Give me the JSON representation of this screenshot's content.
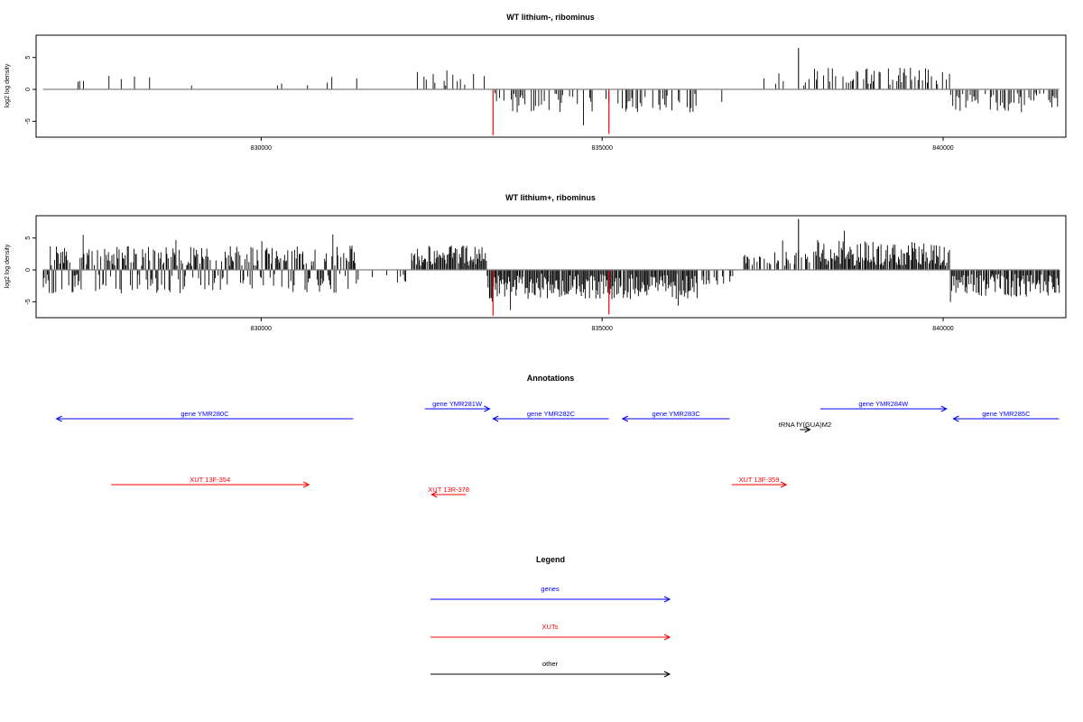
{
  "colors": {
    "gene": "#0000ff",
    "xut": "#ff0000",
    "other": "#000000",
    "highlight": "#ff0000",
    "bar": "#000000",
    "baseline": "#808080"
  },
  "chart_data": [
    {
      "type": "bar",
      "title": "WT lithium-, ribominus",
      "ylabel": "log2 log density",
      "xlim": [
        826700,
        841800
      ],
      "ylim": [
        -7.5,
        8.5
      ],
      "xticks": [
        830000,
        835000,
        840000
      ],
      "yticks": [
        -5,
        0,
        5
      ],
      "highlight_x": [
        833400,
        835100
      ],
      "highlight_values": [
        -7.2,
        -7.0
      ],
      "seed": 11,
      "density": "sparse"
    },
    {
      "type": "bar",
      "title": "WT lithium+, ribominus",
      "ylabel": "log2 log density",
      "xlim": [
        826700,
        841800
      ],
      "ylim": [
        -7.5,
        8.5
      ],
      "xticks": [
        830000,
        835000,
        840000
      ],
      "yticks": [
        -5,
        0,
        5
      ],
      "highlight_x": [
        833400,
        835100
      ],
      "highlight_values": [
        -7.2,
        -7.0
      ],
      "seed": 29,
      "density": "dense"
    }
  ],
  "annotations": {
    "title": "Annotations",
    "xlim": [
      826700,
      841800
    ],
    "features": [
      {
        "label": "gene YMR280C",
        "type": "gene",
        "strand": "-",
        "start": 827000,
        "end": 831350,
        "row": 1
      },
      {
        "label": "gene YMR281W",
        "type": "gene",
        "strand": "+",
        "start": 832400,
        "end": 833350,
        "row": 0
      },
      {
        "label": "gene YMR282C",
        "type": "gene",
        "strand": "-",
        "start": 833400,
        "end": 835100,
        "row": 1
      },
      {
        "label": "gene YMR283C",
        "type": "gene",
        "strand": "-",
        "start": 835300,
        "end": 836870,
        "row": 1
      },
      {
        "label": "gene YMR284W",
        "type": "gene",
        "strand": "+",
        "start": 838200,
        "end": 840050,
        "row": 0
      },
      {
        "label": "gene YMR285C",
        "type": "gene",
        "strand": "-",
        "start": 840150,
        "end": 841700,
        "row": 1
      },
      {
        "label": "tRNA fY(GUA)M2",
        "type": "other",
        "strand": "+",
        "start": 837900,
        "end": 838050,
        "row": 2
      },
      {
        "label": "XUT 13F-354",
        "type": "xut",
        "strand": "+",
        "start": 827800,
        "end": 830700,
        "row": 3
      },
      {
        "label": "XUT 13R-378",
        "type": "xut",
        "strand": "-",
        "start": 832500,
        "end": 833000,
        "row": 4
      },
      {
        "label": "XUT 13F-359",
        "type": "xut",
        "strand": "+",
        "start": 836900,
        "end": 837700,
        "row": 3
      }
    ]
  },
  "legend": {
    "title": "Legend",
    "items": [
      {
        "label": "genes",
        "type": "gene"
      },
      {
        "label": "XUTs",
        "type": "xut"
      },
      {
        "label": "other",
        "type": "other"
      }
    ]
  }
}
